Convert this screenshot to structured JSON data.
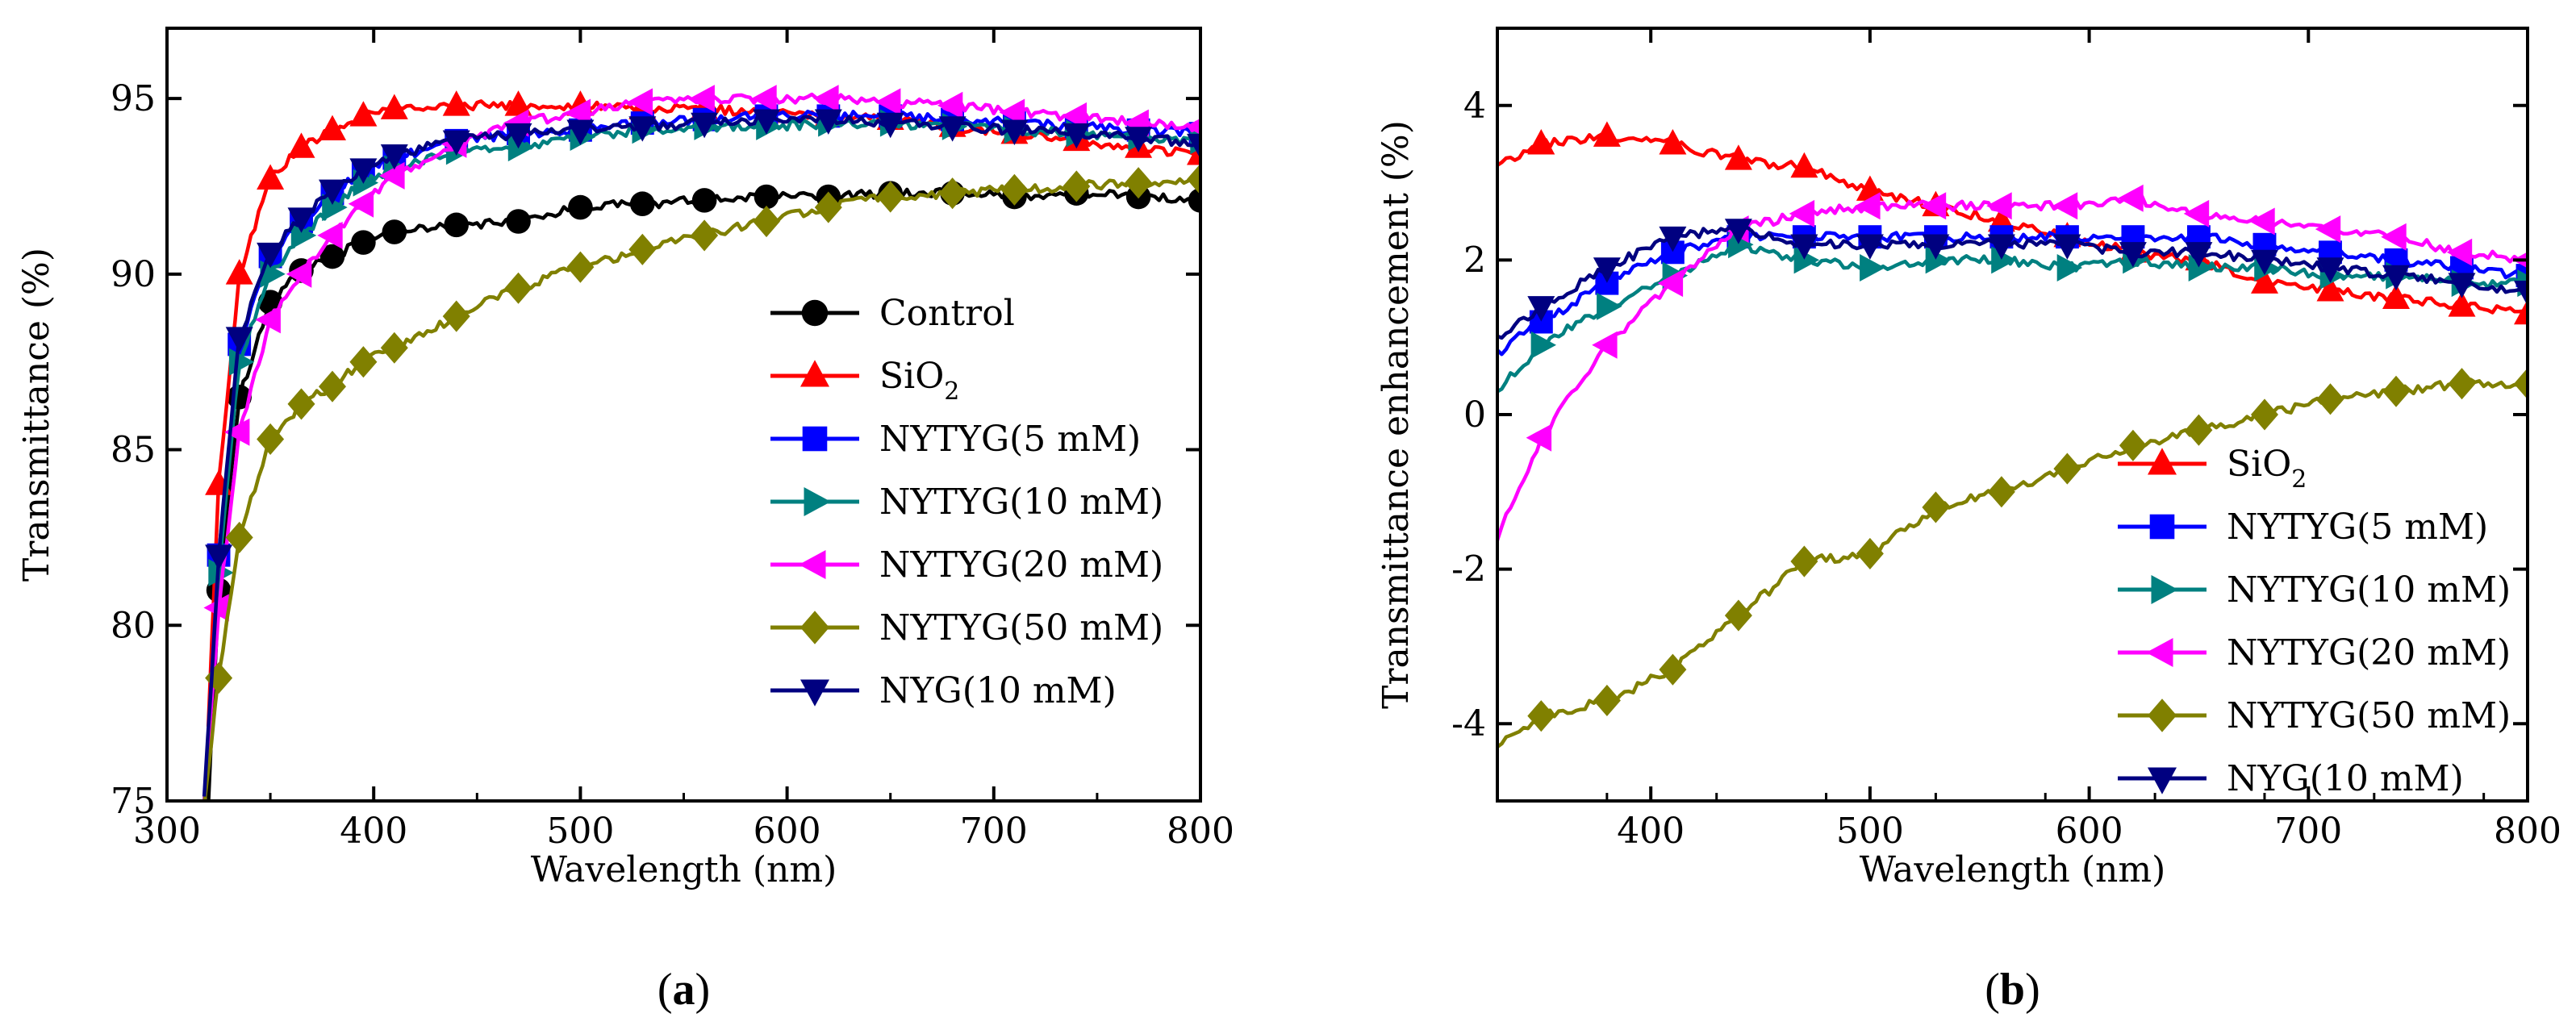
{
  "chart_data": [
    {
      "type": "line",
      "panel": "a",
      "panel_label": {
        "open": "(",
        "letter": "a",
        "close": ")"
      },
      "xlabel": "Wavelength (nm)",
      "ylabel": "Transmittance (%)",
      "xlim": [
        300,
        800
      ],
      "ylim": [
        75,
        97
      ],
      "xticks": [
        300,
        400,
        500,
        600,
        700,
        800
      ],
      "yticks": [
        75,
        80,
        85,
        90,
        95
      ],
      "legend_position": "center-right",
      "series": [
        {
          "name": "Control",
          "color": "#000000",
          "marker": "circle",
          "x": [
            320,
            325,
            335,
            350,
            365,
            380,
            395,
            410,
            440,
            470,
            500,
            530,
            560,
            590,
            620,
            650,
            680,
            710,
            740,
            770,
            800
          ],
          "y": [
            75,
            81,
            86.5,
            89.2,
            90.1,
            90.5,
            90.9,
            91.2,
            91.4,
            91.5,
            91.9,
            92.0,
            92.1,
            92.2,
            92.2,
            92.3,
            92.3,
            92.2,
            92.3,
            92.2,
            92.1
          ]
        },
        {
          "name": "SiO2",
          "name_base": "SiO",
          "name_sub": "2",
          "color": "#ff0000",
          "marker": "triangle-up",
          "x": [
            320,
            325,
            335,
            350,
            365,
            380,
            395,
            410,
            440,
            470,
            500,
            530,
            560,
            590,
            620,
            650,
            680,
            710,
            740,
            770,
            800
          ],
          "y": [
            77.2,
            84,
            90,
            92.7,
            93.6,
            94.1,
            94.5,
            94.7,
            94.8,
            94.8,
            94.8,
            94.7,
            94.7,
            94.6,
            94.5,
            94.4,
            94.2,
            94.0,
            93.8,
            93.6,
            93.4
          ]
        },
        {
          "name": "NYTYG(5 mM)",
          "color": "#0000ff",
          "marker": "square",
          "x": [
            318,
            325,
            335,
            350,
            365,
            380,
            395,
            410,
            440,
            470,
            500,
            530,
            560,
            590,
            620,
            650,
            680,
            710,
            740,
            770,
            800
          ],
          "y": [
            75,
            82,
            88,
            90.5,
            91.5,
            92.3,
            92.9,
            93.3,
            93.8,
            94.0,
            94.1,
            94.3,
            94.4,
            94.5,
            94.5,
            94.5,
            94.4,
            94.3,
            94.2,
            94.1,
            94.0
          ]
        },
        {
          "name": "NYTYG(10 mM)",
          "color": "#008080",
          "marker": "triangle-right",
          "x": [
            318,
            325,
            335,
            350,
            365,
            380,
            395,
            410,
            440,
            470,
            500,
            530,
            560,
            590,
            620,
            650,
            680,
            710,
            740,
            770,
            800
          ],
          "y": [
            75,
            81.5,
            87.5,
            90.0,
            91.1,
            91.9,
            92.6,
            93.0,
            93.5,
            93.6,
            93.9,
            94.1,
            94.2,
            94.2,
            94.3,
            94.3,
            94.2,
            94.1,
            94.0,
            93.9,
            93.8
          ]
        },
        {
          "name": "NYTYG(20 mM)",
          "color": "#ff00ff",
          "marker": "triangle-left",
          "x": [
            318,
            325,
            335,
            350,
            365,
            380,
            395,
            410,
            440,
            470,
            500,
            530,
            560,
            590,
            620,
            650,
            680,
            710,
            740,
            770,
            800
          ],
          "y": [
            75,
            80.5,
            85.5,
            88.7,
            90.0,
            91.1,
            92.0,
            92.8,
            93.7,
            94.3,
            94.6,
            94.9,
            95.0,
            95.0,
            95.0,
            94.9,
            94.8,
            94.6,
            94.5,
            94.3,
            94.2
          ]
        },
        {
          "name": "NYTYG(50 mM)",
          "color": "#808000",
          "marker": "diamond",
          "x": [
            318,
            325,
            335,
            350,
            365,
            380,
            395,
            410,
            440,
            470,
            500,
            530,
            560,
            590,
            620,
            650,
            680,
            710,
            740,
            770,
            800
          ],
          "y": [
            75,
            78.5,
            82.5,
            85.3,
            86.3,
            86.8,
            87.5,
            87.9,
            88.8,
            89.6,
            90.2,
            90.7,
            91.1,
            91.5,
            91.9,
            92.2,
            92.3,
            92.4,
            92.5,
            92.6,
            92.7
          ]
        },
        {
          "name": "NYG(10 mM)",
          "color": "#000080",
          "marker": "triangle-down",
          "x": [
            318,
            325,
            335,
            350,
            365,
            380,
            395,
            410,
            440,
            470,
            500,
            530,
            560,
            590,
            620,
            650,
            680,
            710,
            740,
            770,
            800
          ],
          "y": [
            75,
            82,
            88.2,
            90.6,
            91.6,
            92.4,
            93.0,
            93.4,
            93.8,
            94.0,
            94.1,
            94.2,
            94.3,
            94.4,
            94.4,
            94.3,
            94.2,
            94.1,
            94.0,
            93.9,
            93.7
          ]
        }
      ]
    },
    {
      "type": "line",
      "panel": "b",
      "panel_label": {
        "open": "(",
        "letter": "b",
        "close": ")"
      },
      "xlabel": "Wavelength (nm)",
      "ylabel": "Transmittance enhancement (%)",
      "xlim": [
        330,
        800
      ],
      "ylim": [
        -5,
        5
      ],
      "xticks": [
        400,
        500,
        600,
        700,
        800
      ],
      "yticks": [
        -4,
        -2,
        0,
        2,
        4
      ],
      "legend_position": "bottom-right",
      "series": [
        {
          "name": "SiO2",
          "name_base": "SiO",
          "name_sub": "2",
          "color": "#ff0000",
          "marker": "triangle-up",
          "x": [
            330,
            350,
            380,
            410,
            440,
            470,
            500,
            530,
            560,
            590,
            620,
            650,
            680,
            710,
            740,
            770,
            800
          ],
          "y": [
            3.2,
            3.5,
            3.6,
            3.5,
            3.3,
            3.2,
            2.9,
            2.7,
            2.5,
            2.3,
            2.1,
            2.0,
            1.7,
            1.6,
            1.5,
            1.4,
            1.3
          ]
        },
        {
          "name": "NYTYG(5 mM)",
          "color": "#0000ff",
          "marker": "square",
          "x": [
            330,
            350,
            380,
            410,
            440,
            470,
            500,
            530,
            560,
            590,
            620,
            650,
            680,
            710,
            740,
            770,
            800
          ],
          "y": [
            0.8,
            1.2,
            1.7,
            2.1,
            2.3,
            2.3,
            2.3,
            2.3,
            2.3,
            2.3,
            2.3,
            2.3,
            2.2,
            2.1,
            2.0,
            1.9,
            1.8
          ]
        },
        {
          "name": "NYTYG(10 mM)",
          "color": "#008080",
          "marker": "triangle-right",
          "x": [
            330,
            350,
            380,
            410,
            440,
            470,
            500,
            530,
            560,
            590,
            620,
            650,
            680,
            710,
            740,
            770,
            800
          ],
          "y": [
            0.3,
            0.9,
            1.4,
            1.8,
            2.2,
            2.0,
            1.9,
            2.0,
            2.0,
            1.9,
            2.0,
            1.9,
            1.9,
            1.8,
            1.8,
            1.7,
            1.7
          ]
        },
        {
          "name": "NYTYG(20 mM)",
          "color": "#ff00ff",
          "marker": "triangle-left",
          "x": [
            330,
            350,
            380,
            410,
            440,
            470,
            500,
            530,
            560,
            590,
            620,
            650,
            680,
            710,
            740,
            770,
            800
          ],
          "y": [
            -1.6,
            -0.3,
            0.9,
            1.7,
            2.4,
            2.6,
            2.7,
            2.7,
            2.7,
            2.7,
            2.8,
            2.6,
            2.5,
            2.4,
            2.3,
            2.1,
            2.0
          ]
        },
        {
          "name": "NYTYG(50 mM)",
          "color": "#808000",
          "marker": "diamond",
          "x": [
            330,
            350,
            380,
            410,
            440,
            470,
            500,
            530,
            560,
            590,
            620,
            650,
            680,
            710,
            740,
            770,
            800
          ],
          "y": [
            -4.3,
            -3.9,
            -3.7,
            -3.3,
            -2.6,
            -1.9,
            -1.8,
            -1.2,
            -1.0,
            -0.7,
            -0.4,
            -0.2,
            0.0,
            0.2,
            0.3,
            0.4,
            0.4
          ]
        },
        {
          "name": "NYG(10 mM)",
          "color": "#000080",
          "marker": "triangle-down",
          "x": [
            330,
            350,
            380,
            410,
            440,
            470,
            500,
            530,
            560,
            590,
            620,
            650,
            680,
            710,
            740,
            770,
            800
          ],
          "y": [
            1.0,
            1.4,
            1.9,
            2.3,
            2.4,
            2.2,
            2.2,
            2.2,
            2.2,
            2.2,
            2.1,
            2.1,
            2.0,
            1.9,
            1.8,
            1.7,
            1.6
          ]
        }
      ]
    }
  ]
}
